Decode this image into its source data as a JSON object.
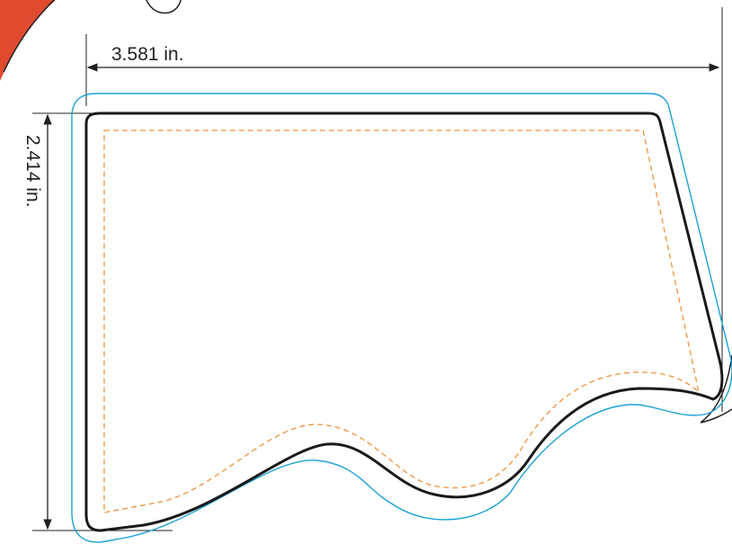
{
  "dimensions": {
    "width_label": "3.581 in.",
    "height_label": "2.414 in."
  },
  "colors": {
    "cut_line": "#1a1a1a",
    "bleed_line": "#1ba1d8",
    "safe_line": "#f0923a",
    "dimension_line": "#231f20",
    "corner_accent": "#e04a2f"
  }
}
